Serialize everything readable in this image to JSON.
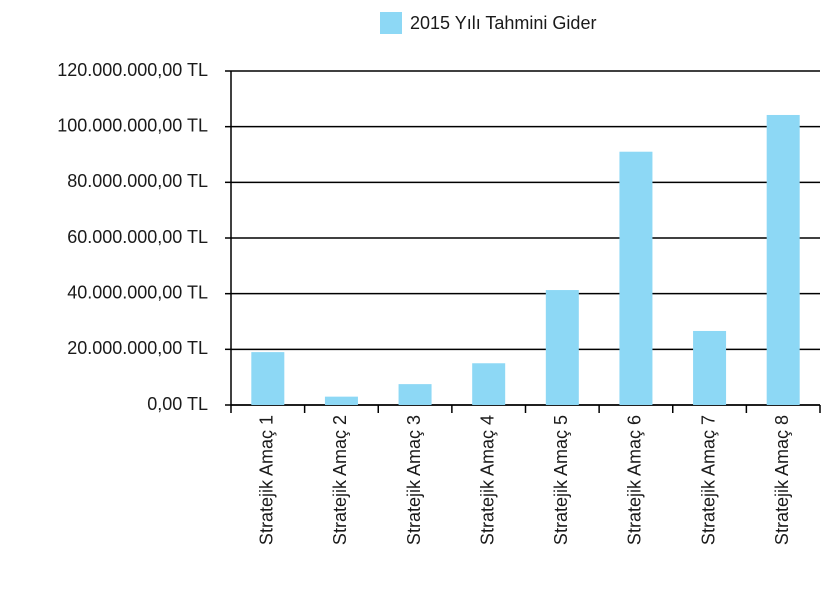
{
  "chart_data": {
    "type": "bar",
    "categories": [
      "Stratejik Amaç 1",
      "Stratejik Amaç 2",
      "Stratejik Amaç 3",
      "Stratejik Amaç 4",
      "Stratejik Amaç 5",
      "Stratejik Amaç 6",
      "Stratejik Amaç 7",
      "Stratejik Amaç 8"
    ],
    "series": [
      {
        "name": "2015 Yılı Tahmini Gider",
        "color": "#8dd8f5",
        "values": [
          19000000,
          3000000,
          7500000,
          15000000,
          41300000,
          91000000,
          26600000,
          104200000
        ]
      }
    ],
    "ylim": [
      0,
      120000000
    ],
    "yticks": [
      {
        "value": 0,
        "label": "0,00 TL"
      },
      {
        "value": 20000000,
        "label": "20.000.000,00 TL"
      },
      {
        "value": 40000000,
        "label": "40.000.000,00 TL"
      },
      {
        "value": 60000000,
        "label": "60.000.000,00 TL"
      },
      {
        "value": 80000000,
        "label": "80.000.000,00 TL"
      },
      {
        "value": 100000000,
        "label": "100.000.000,00 TL"
      },
      {
        "value": 120000000,
        "label": "120.000.000,00 TL"
      }
    ],
    "grid": true,
    "legend": "top"
  }
}
